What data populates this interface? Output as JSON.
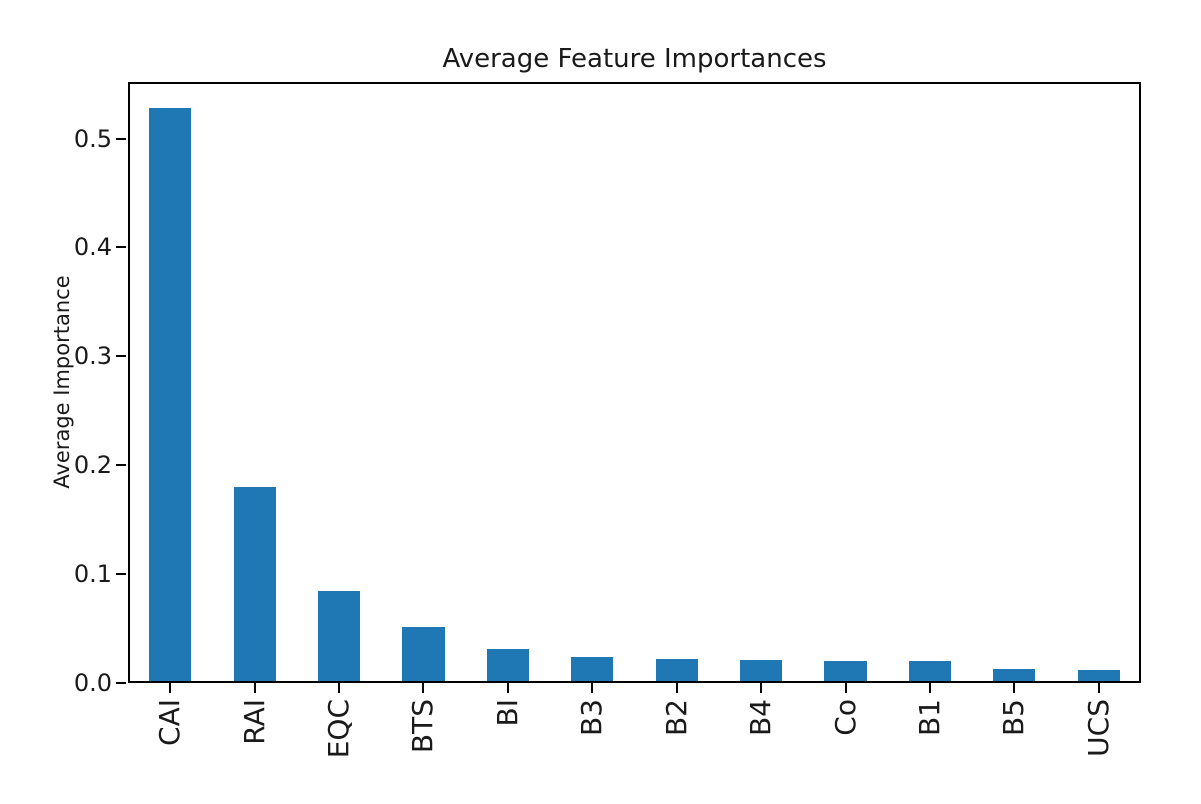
{
  "chart_data": {
    "type": "bar",
    "title": "Average Feature Importances",
    "xlabel": "",
    "ylabel": "Average Importance",
    "categories": [
      "CAI",
      "RAI",
      "EQC",
      "BTS",
      "BI",
      "B3",
      "B2",
      "B4",
      "Co",
      "B1",
      "B5",
      "UCS"
    ],
    "values": [
      0.526,
      0.178,
      0.083,
      0.05,
      0.029,
      0.022,
      0.02,
      0.019,
      0.018,
      0.018,
      0.011,
      0.01
    ],
    "ylim": [
      0,
      0.552
    ],
    "yticks": [
      0.0,
      0.1,
      0.2,
      0.3,
      0.4,
      0.5
    ],
    "ytick_labels": [
      "0.0",
      "0.1",
      "0.2",
      "0.3",
      "0.4",
      "0.5"
    ],
    "xtick_rotation_deg": 90,
    "grid": false,
    "legend": null,
    "bar_color": "#1f77b4",
    "axis_color": "#000000",
    "text_color": "#1a1a1a",
    "background_color": "#ffffff"
  }
}
